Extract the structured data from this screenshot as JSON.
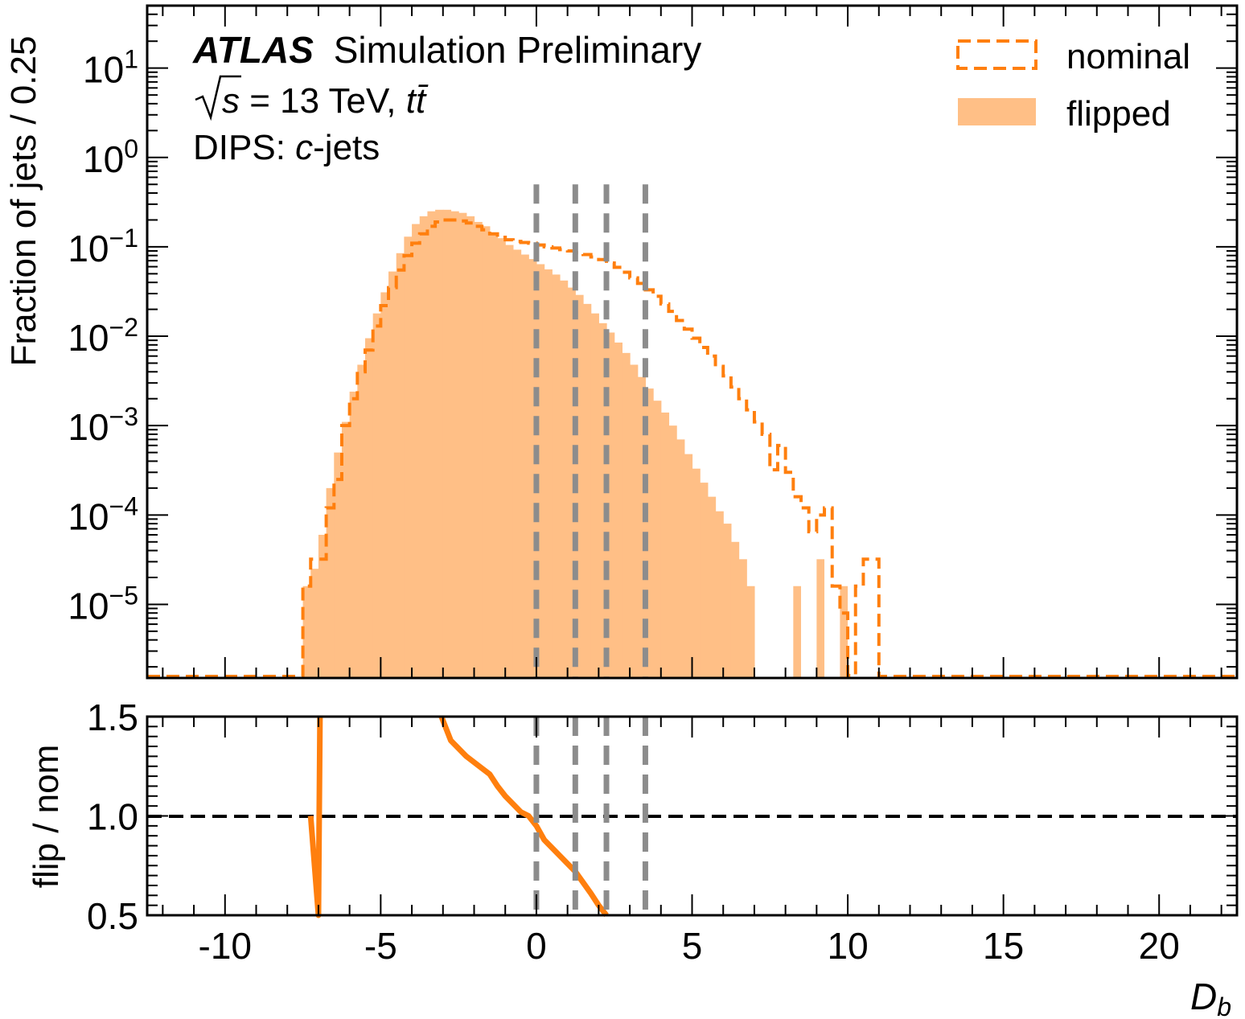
{
  "chart_data": [
    {
      "type": "histogram",
      "panel": "main",
      "ylabel": "Fraction of jets / 0.25",
      "yscale": "log",
      "ylim": [
        1.5e-06,
        50
      ],
      "xlim": [
        -12.5,
        22.5
      ],
      "bin_width": 0.25,
      "y_ticks": [
        {
          "base": "10",
          "exp": "−5",
          "value": 1e-05
        },
        {
          "base": "10",
          "exp": "−4",
          "value": 0.0001
        },
        {
          "base": "10",
          "exp": "−3",
          "value": 0.001
        },
        {
          "base": "10",
          "exp": "−2",
          "value": 0.01
        },
        {
          "base": "10",
          "exp": "−1",
          "value": 0.1
        },
        {
          "base": "10",
          "exp": "0",
          "value": 1
        },
        {
          "base": "10",
          "exp": "1",
          "value": 10
        }
      ],
      "annotations": {
        "atlas": "ATLAS",
        "status": "Simulation Preliminary",
        "energy_pre": "s",
        "energy_rest": " = 13 TeV, ",
        "process": "tt̄",
        "tagger_prefix": "DIPS: ",
        "tagger_flavour": "c",
        "tagger_suffix": "-jets"
      },
      "legend": {
        "placement": "top-right"
      },
      "vertical_lines_x": [
        0.0,
        1.25,
        2.25,
        3.5
      ],
      "series": [
        {
          "name": "nominal",
          "style": "dashed-step",
          "color": "#ff7f0e",
          "x_start": -7.5,
          "values": [
            1.6e-05,
            3.2e-05,
            3.2e-05,
            0.00012,
            0.00025,
            0.001,
            0.002,
            0.004,
            0.007,
            0.013,
            0.022,
            0.035,
            0.055,
            0.08,
            0.11,
            0.14,
            0.17,
            0.19,
            0.2,
            0.2,
            0.195,
            0.185,
            0.17,
            0.155,
            0.14,
            0.128,
            0.12,
            0.115,
            0.112,
            0.11,
            0.105,
            0.1,
            0.097,
            0.093,
            0.09,
            0.086,
            0.082,
            0.077,
            0.072,
            0.066,
            0.059,
            0.052,
            0.045,
            0.039,
            0.033,
            0.028,
            0.023,
            0.019,
            0.015,
            0.012,
            0.0095,
            0.0075,
            0.006,
            0.0046,
            0.0036,
            0.0027,
            0.002,
            0.0015,
            0.0011,
            0.0008,
            0.00032,
            0.0006,
            0.0003,
            0.00016,
            0.00012,
            6.5e-05,
            0.0001,
            0.00012,
            1.6e-05,
            8e-06,
            1.6e-06,
            1.6e-05,
            3.2e-05,
            3.2e-05
          ]
        },
        {
          "name": "flipped",
          "style": "filled",
          "color": "#ffbf86",
          "x_start": -7.5,
          "values": [
            1.6e-05,
            2.5e-05,
            6e-05,
            0.0002,
            0.0005,
            0.0011,
            0.0024,
            0.0048,
            0.0095,
            0.018,
            0.031,
            0.053,
            0.085,
            0.13,
            0.18,
            0.22,
            0.25,
            0.26,
            0.26,
            0.25,
            0.24,
            0.22,
            0.19,
            0.17,
            0.145,
            0.125,
            0.105,
            0.093,
            0.082,
            0.073,
            0.064,
            0.056,
            0.049,
            0.042,
            0.035,
            0.029,
            0.023,
            0.018,
            0.014,
            0.011,
            0.0085,
            0.0065,
            0.0048,
            0.0035,
            0.0026,
            0.0019,
            0.0014,
            0.001,
            0.0007,
            0.00048,
            0.00033,
            0.00023,
            0.00016,
            0.00011,
            8e-05,
            5e-05,
            3.2e-05,
            1.6e-05
          ]
        }
      ],
      "extra_flipped_bins": [
        {
          "x": 8.25,
          "value": 1.6e-05
        },
        {
          "x": 9.0,
          "value": 3.2e-05
        },
        {
          "x": 9.75,
          "value": 1.6e-05
        }
      ]
    },
    {
      "type": "line",
      "panel": "ratio",
      "ylabel": "flip / nom",
      "xlabel": "D",
      "xlabel_sub": "b",
      "ylim": [
        0.5,
        1.5
      ],
      "xlim": [
        -12.5,
        22.5
      ],
      "y_ticks": [
        "0.5",
        "1.0",
        "1.5"
      ],
      "x_ticks": [
        "-10",
        "-5",
        "0",
        "5",
        "10",
        "15",
        "20"
      ],
      "reference_line": 1.0,
      "vertical_lines_x": [
        0.0,
        1.25,
        2.25,
        3.5
      ],
      "series": [
        {
          "name": "",
          "color": "#ff7f0e",
          "points": [
            [
              -7.25,
              1.0
            ],
            [
              -7.0,
              0.5
            ],
            [
              -6.95,
              1.5
            ]
          ]
        },
        {
          "name": "",
          "color": "#ff7f0e",
          "points": [
            [
              -3.05,
              1.5
            ],
            [
              -2.75,
              1.38
            ],
            [
              -2.25,
              1.3
            ],
            [
              -1.75,
              1.24
            ],
            [
              -1.5,
              1.21
            ],
            [
              -1.25,
              1.15
            ],
            [
              -1.0,
              1.1
            ],
            [
              -0.75,
              1.06
            ],
            [
              -0.5,
              1.02
            ],
            [
              -0.25,
              1.0
            ],
            [
              0.0,
              0.95
            ],
            [
              0.25,
              0.88
            ],
            [
              0.75,
              0.8
            ],
            [
              1.25,
              0.72
            ],
            [
              1.75,
              0.61
            ],
            [
              2.0,
              0.55
            ],
            [
              2.25,
              0.5
            ]
          ]
        }
      ]
    }
  ]
}
